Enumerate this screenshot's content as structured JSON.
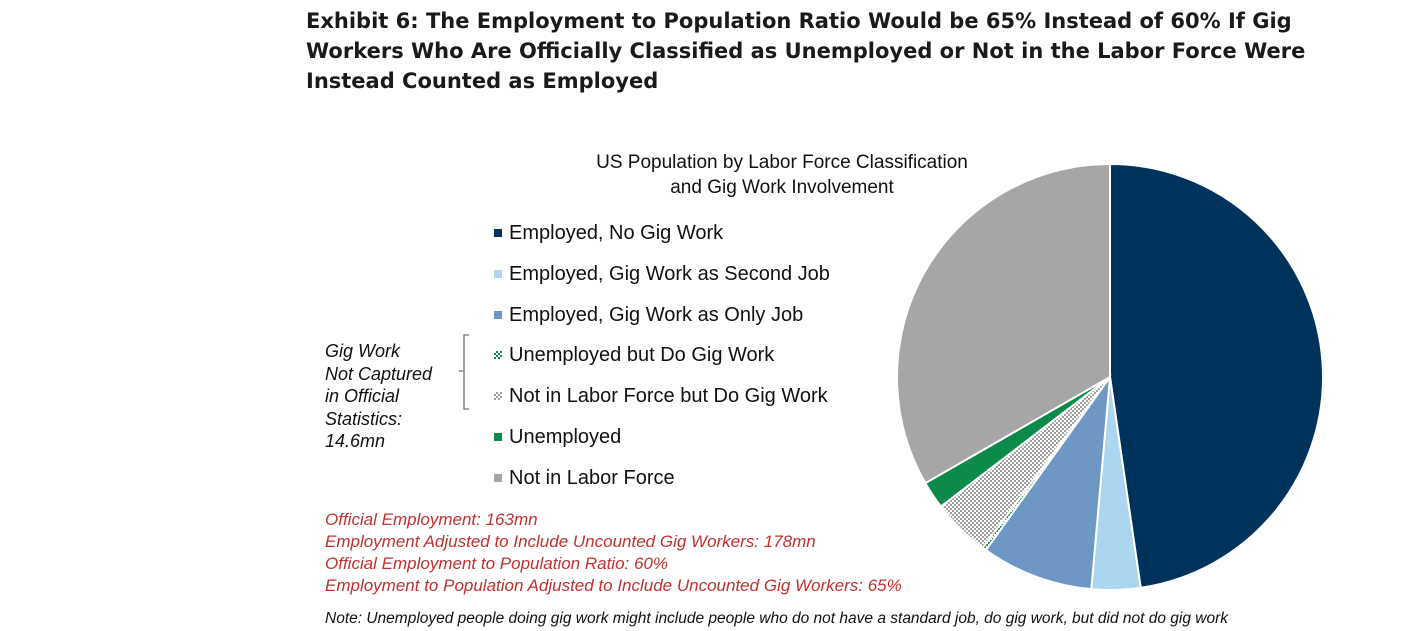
{
  "exhibit": {
    "title": "Exhibit 6: The Employment to Population Ratio Would be 65% Instead of 60% If Gig Workers Who Are Officially Classified as Unemployed or Not in the Labor Force Were Instead Counted as Employed"
  },
  "bracket_note": [
    "Gig Work",
    "Not Captured",
    "in Official",
    "Statistics:",
    "14.6mn"
  ],
  "stats": [
    "Official Employment: 163mn",
    "Employment Adjusted to Include Uncounted Gig Workers: 178mn",
    "Official Employment to Population Ratio: 60%",
    "Employment to Population Adjusted to Include Uncounted Gig Workers: 65%"
  ],
  "footnote": "Note: Unemployed people doing gig work might include people who do not have a standard job, do gig work, but did not do gig work",
  "colors": {
    "stat_text": "#c0312f",
    "bracket": "#8a8a8a"
  },
  "chart_data": {
    "type": "pie",
    "title": "US Population by Labor Force Classification and Gig Work Involvement",
    "title_lines": [
      "US Population by Labor Force Classification",
      "and Gig Work Involvement"
    ],
    "legend_position": "left",
    "start_angle_deg": 0,
    "direction": "clockwise",
    "series": [
      {
        "name": "Employed, No Gig Work",
        "value": 47.7,
        "color": "#00335c",
        "pattern": "solid"
      },
      {
        "name": "Employed, Gig Work as Second Job",
        "value": 3.7,
        "color": "#acd5ef",
        "pattern": "solid"
      },
      {
        "name": "Employed, Gig Work as Only Job",
        "value": 8.5,
        "color": "#6f97c4",
        "pattern": "solid"
      },
      {
        "name": "Unemployed but Do Gig Work",
        "value": 0.3,
        "color": "#0e8a4e",
        "pattern": "checker"
      },
      {
        "name": "Not in Labor Force but Do Gig Work",
        "value": 4.4,
        "color": "#9e9e9e",
        "pattern": "checker"
      },
      {
        "name": "Unemployed",
        "value": 2.1,
        "color": "#0b8a4c",
        "pattern": "solid"
      },
      {
        "name": "Not in Labor Force",
        "value": 33.3,
        "color": "#a6a6a6",
        "pattern": "solid"
      }
    ]
  }
}
